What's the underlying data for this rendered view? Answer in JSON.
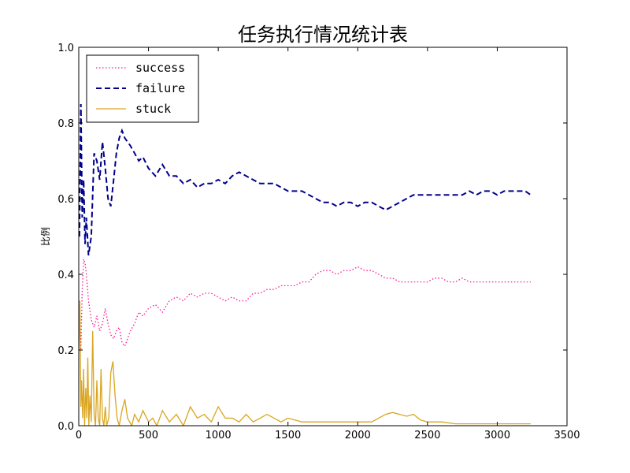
{
  "chart_data": {
    "type": "line",
    "title": "任务执行情况统计表",
    "xlabel": "",
    "ylabel": "比例",
    "xlim": [
      0,
      3500
    ],
    "ylim": [
      0,
      1.0
    ],
    "xticks": [
      0,
      500,
      1000,
      1500,
      2000,
      2500,
      3000,
      3500
    ],
    "yticks": [
      0.0,
      0.2,
      0.4,
      0.6,
      0.8,
      1.0
    ],
    "xtick_labels": [
      "0",
      "500",
      "1000",
      "1500",
      "2000",
      "2500",
      "3000",
      "3500"
    ],
    "ytick_labels": [
      "0.0",
      "0.2",
      "0.4",
      "0.6",
      "0.8",
      "1.0"
    ],
    "grid": false,
    "legend_position": "top-left",
    "series": [
      {
        "name": "success",
        "color": "#ff1493",
        "style": "dotted",
        "x": [
          5,
          15,
          25,
          35,
          45,
          55,
          70,
          90,
          110,
          130,
          150,
          170,
          190,
          210,
          230,
          250,
          270,
          290,
          310,
          330,
          350,
          370,
          400,
          430,
          460,
          500,
          550,
          600,
          650,
          700,
          750,
          800,
          850,
          900,
          950,
          1000,
          1050,
          1100,
          1150,
          1200,
          1250,
          1300,
          1350,
          1400,
          1450,
          1500,
          1550,
          1600,
          1650,
          1700,
          1750,
          1800,
          1850,
          1900,
          1950,
          2000,
          2050,
          2100,
          2150,
          2200,
          2250,
          2300,
          2350,
          2400,
          2450,
          2500,
          2550,
          2600,
          2650,
          2700,
          2750,
          2800,
          2850,
          2900,
          2950,
          3000,
          3050,
          3100,
          3150,
          3200,
          3240
        ],
        "values": [
          0.33,
          0.2,
          0.36,
          0.44,
          0.43,
          0.4,
          0.33,
          0.28,
          0.26,
          0.29,
          0.25,
          0.27,
          0.31,
          0.27,
          0.24,
          0.23,
          0.25,
          0.26,
          0.22,
          0.21,
          0.23,
          0.25,
          0.27,
          0.3,
          0.29,
          0.31,
          0.32,
          0.3,
          0.33,
          0.34,
          0.33,
          0.35,
          0.34,
          0.35,
          0.35,
          0.34,
          0.33,
          0.34,
          0.33,
          0.33,
          0.35,
          0.35,
          0.36,
          0.36,
          0.37,
          0.37,
          0.37,
          0.38,
          0.38,
          0.4,
          0.41,
          0.41,
          0.4,
          0.41,
          0.41,
          0.42,
          0.41,
          0.41,
          0.4,
          0.39,
          0.39,
          0.38,
          0.38,
          0.38,
          0.38,
          0.38,
          0.39,
          0.39,
          0.38,
          0.38,
          0.39,
          0.38,
          0.38,
          0.38,
          0.38,
          0.38,
          0.38,
          0.38,
          0.38,
          0.38,
          0.38
        ]
      },
      {
        "name": "failure",
        "color": "#00008b",
        "style": "dashed",
        "x": [
          5,
          15,
          25,
          35,
          45,
          55,
          70,
          90,
          110,
          130,
          150,
          170,
          190,
          210,
          230,
          250,
          270,
          290,
          310,
          330,
          350,
          370,
          400,
          430,
          460,
          500,
          550,
          600,
          650,
          700,
          750,
          800,
          850,
          900,
          950,
          1000,
          1050,
          1100,
          1150,
          1200,
          1250,
          1300,
          1350,
          1400,
          1450,
          1500,
          1550,
          1600,
          1650,
          1700,
          1750,
          1800,
          1850,
          1900,
          1950,
          2000,
          2050,
          2100,
          2150,
          2200,
          2250,
          2300,
          2350,
          2400,
          2450,
          2500,
          2550,
          2600,
          2650,
          2700,
          2750,
          2800,
          2850,
          2900,
          2950,
          3000,
          3050,
          3100,
          3150,
          3200,
          3240
        ],
        "values": [
          0.5,
          0.85,
          0.55,
          0.65,
          0.48,
          0.55,
          0.45,
          0.5,
          0.72,
          0.7,
          0.65,
          0.75,
          0.68,
          0.6,
          0.58,
          0.65,
          0.72,
          0.76,
          0.78,
          0.76,
          0.75,
          0.74,
          0.72,
          0.7,
          0.71,
          0.68,
          0.66,
          0.69,
          0.66,
          0.66,
          0.64,
          0.65,
          0.63,
          0.64,
          0.64,
          0.65,
          0.64,
          0.66,
          0.67,
          0.66,
          0.65,
          0.64,
          0.64,
          0.64,
          0.63,
          0.62,
          0.62,
          0.62,
          0.61,
          0.6,
          0.59,
          0.59,
          0.58,
          0.59,
          0.59,
          0.58,
          0.59,
          0.59,
          0.58,
          0.57,
          0.58,
          0.59,
          0.6,
          0.61,
          0.61,
          0.61,
          0.61,
          0.61,
          0.61,
          0.61,
          0.61,
          0.62,
          0.61,
          0.62,
          0.62,
          0.61,
          0.62,
          0.62,
          0.62,
          0.62,
          0.61
        ]
      },
      {
        "name": "stuck",
        "color": "#daa520",
        "style": "solid",
        "x": [
          0,
          8,
          15,
          20,
          28,
          35,
          42,
          50,
          58,
          65,
          72,
          80,
          90,
          100,
          110,
          120,
          130,
          140,
          150,
          160,
          170,
          180,
          190,
          200,
          215,
          230,
          245,
          260,
          275,
          290,
          310,
          330,
          350,
          380,
          400,
          430,
          460,
          500,
          530,
          560,
          600,
          650,
          700,
          750,
          800,
          850,
          900,
          950,
          1000,
          1050,
          1100,
          1150,
          1200,
          1250,
          1300,
          1350,
          1400,
          1450,
          1500,
          1600,
          1700,
          1800,
          1900,
          2000,
          2100,
          2150,
          2200,
          2250,
          2300,
          2350,
          2400,
          2450,
          2500,
          2550,
          2600,
          2700,
          2800,
          2900,
          3000,
          3100,
          3200,
          3240
        ],
        "values": [
          0.2,
          0.33,
          0.05,
          0.12,
          0.02,
          0.15,
          0.0,
          0.1,
          0.02,
          0.18,
          0.0,
          0.08,
          0.01,
          0.25,
          0.03,
          0.0,
          0.12,
          0.02,
          0.0,
          0.15,
          0.02,
          0.0,
          0.05,
          0.0,
          0.02,
          0.14,
          0.17,
          0.08,
          0.02,
          0.0,
          0.04,
          0.07,
          0.02,
          0.0,
          0.03,
          0.01,
          0.04,
          0.01,
          0.02,
          0.0,
          0.04,
          0.01,
          0.03,
          0.0,
          0.05,
          0.02,
          0.03,
          0.01,
          0.05,
          0.02,
          0.02,
          0.01,
          0.03,
          0.01,
          0.02,
          0.03,
          0.02,
          0.01,
          0.02,
          0.01,
          0.01,
          0.01,
          0.01,
          0.01,
          0.01,
          0.02,
          0.03,
          0.035,
          0.03,
          0.025,
          0.03,
          0.015,
          0.01,
          0.01,
          0.01,
          0.005,
          0.005,
          0.005,
          0.005,
          0.005,
          0.005,
          0.005
        ]
      }
    ]
  }
}
